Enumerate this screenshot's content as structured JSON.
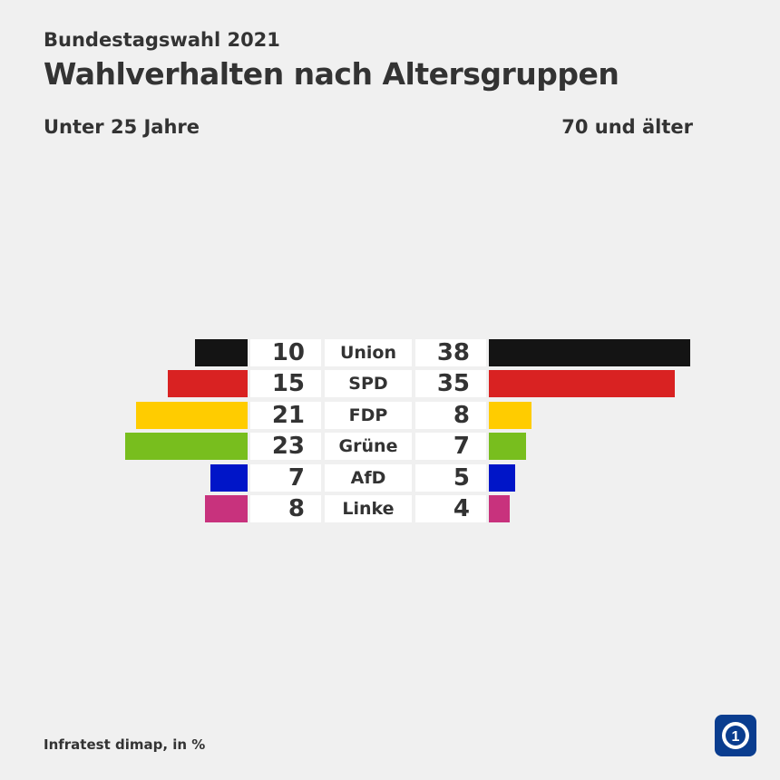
{
  "header": {
    "supertitle": "Bundestagswahl 2021",
    "title": "Wahlverhalten nach Altersgruppen",
    "left_group": "Unter 25 Jahre",
    "right_group": "70 und älter"
  },
  "chart_data": {
    "type": "bar",
    "title": "Wahlverhalten nach Altersgruppen",
    "categories": [
      "Union",
      "SPD",
      "FDP",
      "Grüne",
      "AfD",
      "Linke"
    ],
    "series": [
      {
        "name": "Unter 25 Jahre",
        "values": [
          10,
          15,
          21,
          23,
          7,
          8
        ]
      },
      {
        "name": "70 und älter",
        "values": [
          38,
          35,
          8,
          7,
          5,
          4
        ]
      }
    ],
    "colors": [
      "#141414",
      "#d92222",
      "#ffcc00",
      "#78be1e",
      "#0015c8",
      "#c8327d"
    ],
    "unit": "%"
  },
  "footer": {
    "source": "Infratest dimap, in %",
    "logo_icon": "ard-logo-icon"
  }
}
